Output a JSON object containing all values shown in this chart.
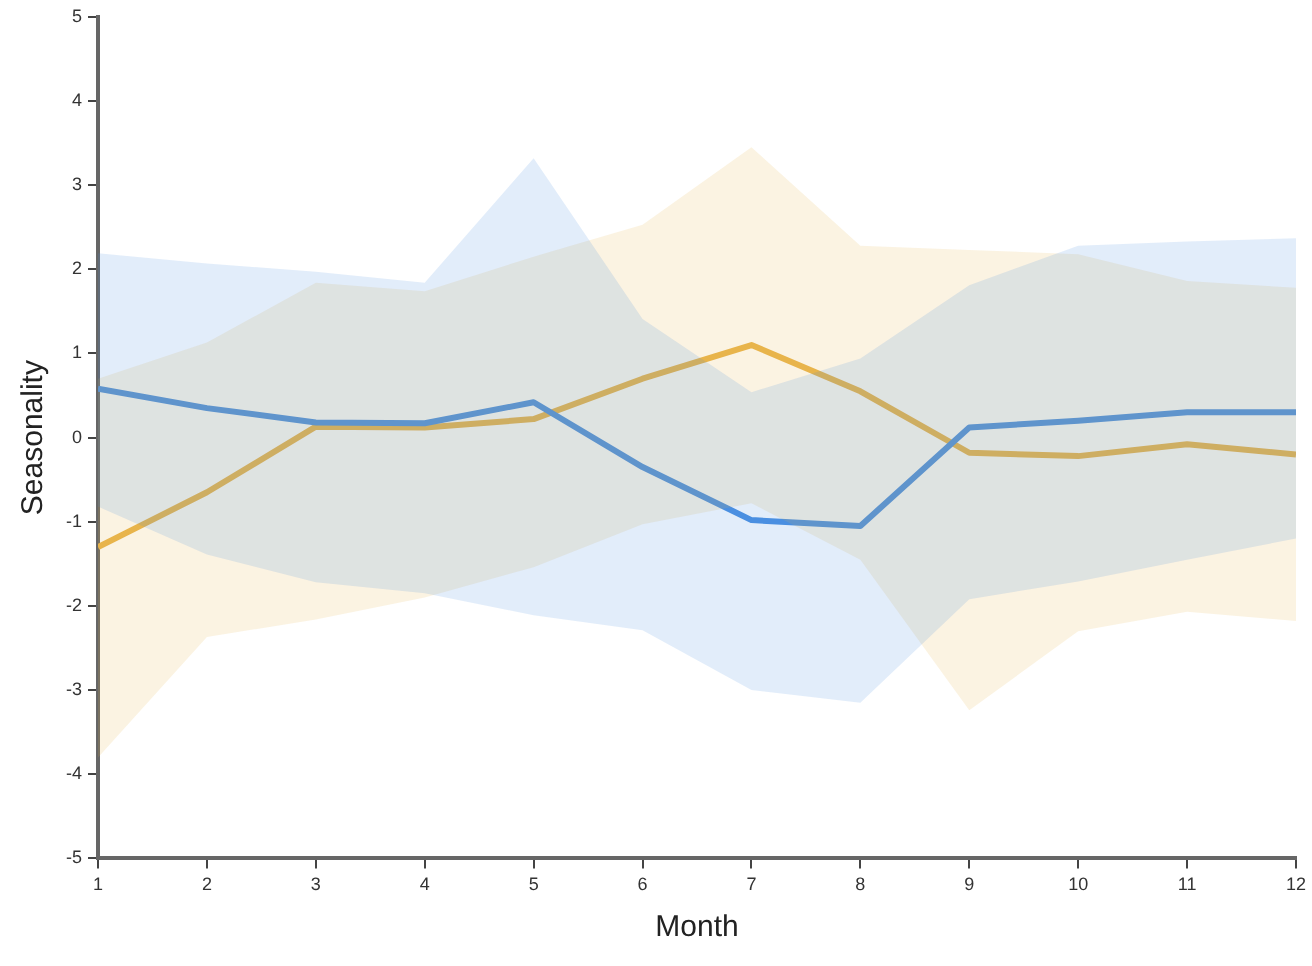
{
  "chart_data": {
    "type": "line",
    "xlabel": "Month",
    "ylabel": "Seasonality",
    "x": [
      1,
      2,
      3,
      4,
      5,
      6,
      7,
      8,
      9,
      10,
      11,
      12
    ],
    "xlim": [
      1,
      12
    ],
    "xticks": [
      1,
      2,
      3,
      4,
      5,
      6,
      7,
      8,
      9,
      10,
      11,
      12
    ],
    "ylim": [
      -5,
      5
    ],
    "yticks": [
      -5,
      -4,
      -3,
      -2,
      -1,
      0,
      1,
      2,
      3,
      4,
      5
    ],
    "grid": false,
    "legend": false,
    "marker": "none",
    "line_style": "solid",
    "series": [
      {
        "color": "#4a90e2",
        "values": [
          0.58,
          0.35,
          0.18,
          0.17,
          0.42,
          -0.35,
          -0.98,
          -1.05,
          0.12,
          0.2,
          0.3,
          0.3
        ],
        "lower": [
          -0.82,
          -1.39,
          -1.72,
          -1.85,
          -2.11,
          -2.29,
          -3.0,
          -3.15,
          -1.92,
          -1.71,
          -1.45,
          -1.2
        ],
        "upper": [
          2.19,
          2.07,
          1.97,
          1.84,
          3.32,
          1.41,
          0.54,
          0.94,
          1.81,
          2.28,
          2.33,
          2.37
        ]
      },
      {
        "color": "#e9b44c",
        "values": [
          -1.3,
          -0.65,
          0.13,
          0.12,
          0.22,
          0.7,
          1.1,
          0.55,
          -0.18,
          -0.22,
          -0.08,
          -0.2
        ],
        "lower": [
          -3.8,
          -2.37,
          -2.16,
          -1.9,
          -1.54,
          -1.03,
          -0.78,
          -1.45,
          -3.24,
          -2.3,
          -2.07,
          -2.18
        ],
        "upper": [
          0.7,
          1.13,
          1.84,
          1.74,
          2.15,
          2.53,
          3.45,
          2.28,
          2.23,
          2.18,
          1.86,
          1.78
        ]
      }
    ]
  }
}
